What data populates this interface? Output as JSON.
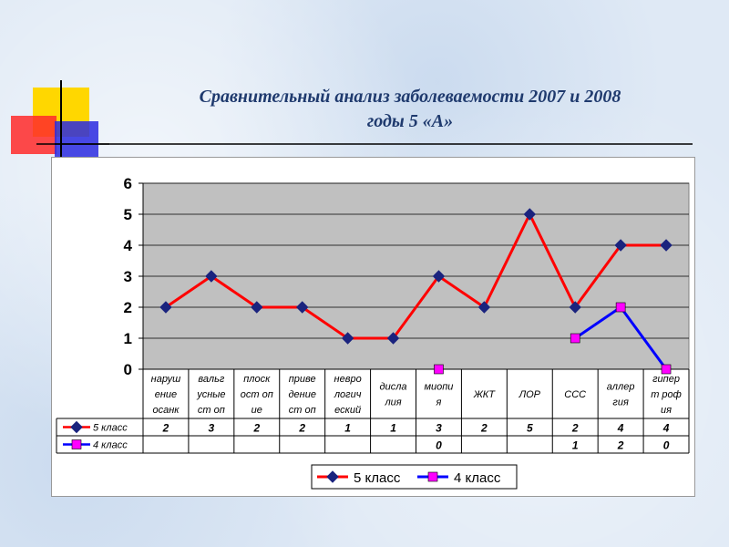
{
  "slide": {
    "title_line1": "Сравнительный анализ заболеваемости 2007 и 2008",
    "title_line2": "годы 5 «А»"
  },
  "colors": {
    "series1": "#ff0000",
    "series1_marker": "#1a237e",
    "series2": "#0000ff",
    "series2_marker": "#ff00ff",
    "plot_bg": "#c0c0c0",
    "deco_yellow": "#ffd700",
    "deco_red": "#ff2a2a",
    "deco_blue": "#2a2ae0"
  },
  "chart_data": {
    "type": "line",
    "categories": [
      [
        "наруш",
        "ение",
        "осанк"
      ],
      [
        "вальг",
        "усные",
        "ст оп"
      ],
      [
        "плоск",
        "ост оп",
        "ие"
      ],
      [
        "приве",
        "дение",
        "ст оп"
      ],
      [
        "невро",
        "логич",
        "еский"
      ],
      [
        "дисла",
        "лия"
      ],
      [
        "миопи",
        "я"
      ],
      [
        "ЖКТ"
      ],
      [
        "ЛОР"
      ],
      [
        "ССС"
      ],
      [
        "аллер",
        "гия"
      ],
      [
        "гипер",
        "т роф",
        "ия"
      ]
    ],
    "series": [
      {
        "name": "5 класс",
        "values": [
          2,
          3,
          2,
          2,
          1,
          1,
          3,
          2,
          5,
          2,
          4,
          4
        ]
      },
      {
        "name": "4 класс",
        "values": [
          null,
          null,
          null,
          null,
          null,
          null,
          0,
          null,
          null,
          1,
          2,
          0
        ]
      }
    ],
    "ylim": [
      0,
      6
    ],
    "yticks": [
      "0",
      "1",
      "2",
      "3",
      "4",
      "5",
      "6"
    ],
    "grid": true,
    "legend": "bottom",
    "data_table": true
  }
}
